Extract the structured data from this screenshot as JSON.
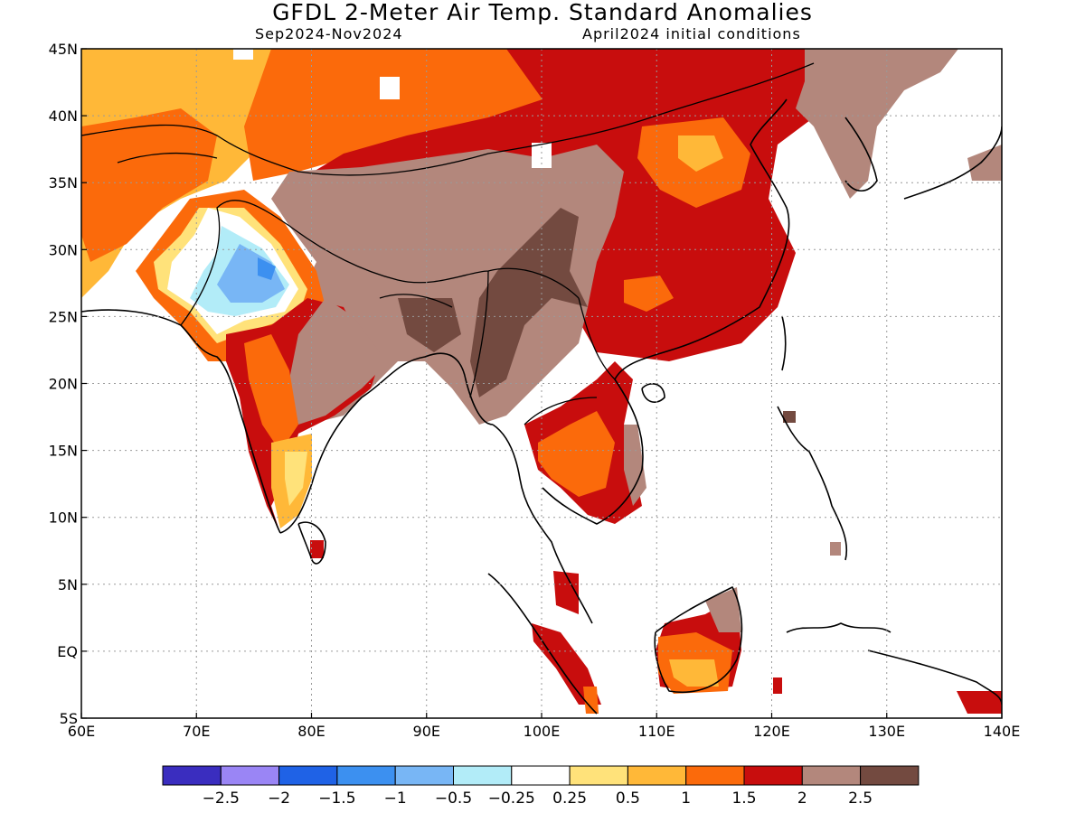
{
  "header": {
    "title": "GFDL 2-Meter Air Temp. Standard Anomalies",
    "period": "Sep2024-Nov2024",
    "init": "April2024 initial conditions"
  },
  "map": {
    "lon_range": [
      60,
      140
    ],
    "lat_range": [
      -5,
      45
    ],
    "lon_ticks": [
      "60E",
      "70E",
      "80E",
      "90E",
      "100E",
      "110E",
      "120E",
      "130E",
      "140E"
    ],
    "lat_ticks": [
      "45N",
      "40N",
      "35N",
      "30N",
      "25N",
      "20N",
      "15N",
      "10N",
      "5N",
      "EQ",
      "5S"
    ],
    "grid": true
  },
  "colorbar": {
    "colors": [
      "#3a2dbf",
      "#9a85f5",
      "#1f62e6",
      "#3c90f0",
      "#78b6f5",
      "#b2ecf8",
      "#ffffff",
      "#ffe27a",
      "#ffb838",
      "#fb6a0b",
      "#c80d0d",
      "#b3877c",
      "#734a40"
    ],
    "labels": [
      "-2.5",
      "-2",
      "-1.5",
      "-1",
      "-0.5",
      "-0.25",
      "0.25",
      "0.5",
      "1",
      "1.5",
      "2",
      "2.5"
    ]
  },
  "chart_data": {
    "type": "heatmap",
    "variable": "2-Meter Air Temp. Standard Anomalies",
    "regions": [
      {
        "area": "Central Asia / Kazakhstan-Afghanistan",
        "range": [
          0.5,
          1.5
        ]
      },
      {
        "area": "Mongolia / North China",
        "range": [
          1.5,
          2.5
        ]
      },
      {
        "area": "Tibetan Plateau / Western China",
        "range": [
          2,
          2.5
        ]
      },
      {
        "area": "Myanmar / Yunnan",
        "range": [
          2,
          2.5
        ]
      },
      {
        "area": "Pakistan / Northwest India",
        "range": [
          -1.5,
          0.25
        ]
      },
      {
        "area": "Central and Eastern India",
        "range": [
          1.5,
          2.5
        ]
      },
      {
        "area": "Southern India",
        "range": [
          0.25,
          2
        ]
      },
      {
        "area": "Southeast China",
        "range": [
          1.5,
          2
        ]
      },
      {
        "area": "Korea / Northeast China coast",
        "range": [
          2,
          2.5
        ]
      },
      {
        "area": "Thailand / Cambodia / Vietnam",
        "range": [
          1,
          2.5
        ]
      },
      {
        "area": "Borneo",
        "range": [
          0.5,
          2.5
        ]
      },
      {
        "area": "Sumatra / Malay Peninsula",
        "range": [
          1.5,
          2
        ]
      }
    ]
  }
}
